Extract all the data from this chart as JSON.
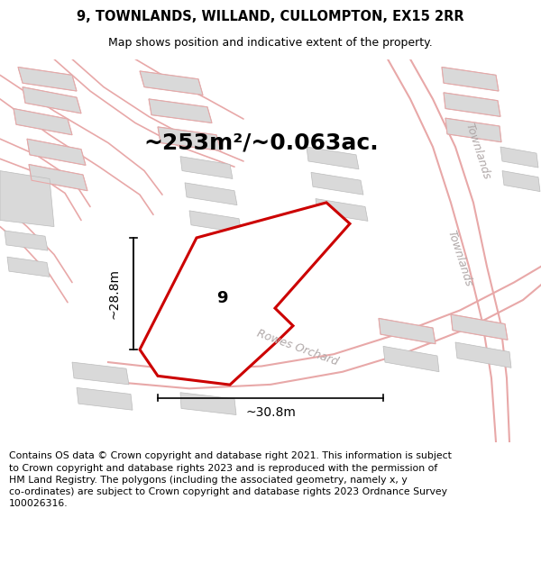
{
  "title": "9, TOWNLANDS, WILLAND, CULLOMPTON, EX15 2RR",
  "subtitle": "Map shows position and indicative extent of the property.",
  "area_label": "~253m²/~0.063ac.",
  "plot_number": "9",
  "dim_width": "~30.8m",
  "dim_height": "~28.8m",
  "footer": "Contains OS data © Crown copyright and database right 2021. This information is subject\nto Crown copyright and database rights 2023 and is reproduced with the permission of\nHM Land Registry. The polygons (including the associated geometry, namely x, y\nco-ordinates) are subject to Crown copyright and database rights 2023 Ordnance Survey\n100026316.",
  "bg_color": "#ffffff",
  "map_bg": "#f2efef",
  "plot_fill": "#ffffff",
  "plot_edge": "#cc0000",
  "building_fill": "#d9d9d9",
  "building_edge": "#bbbbbb",
  "road_line": "#e8a8a8",
  "road_text": "#b0a8a8",
  "title_fontsize": 10.5,
  "subtitle_fontsize": 9,
  "area_fontsize": 18,
  "label_fontsize": 13,
  "dim_fontsize": 10,
  "road_fontsize": 9,
  "footer_fontsize": 7.8
}
